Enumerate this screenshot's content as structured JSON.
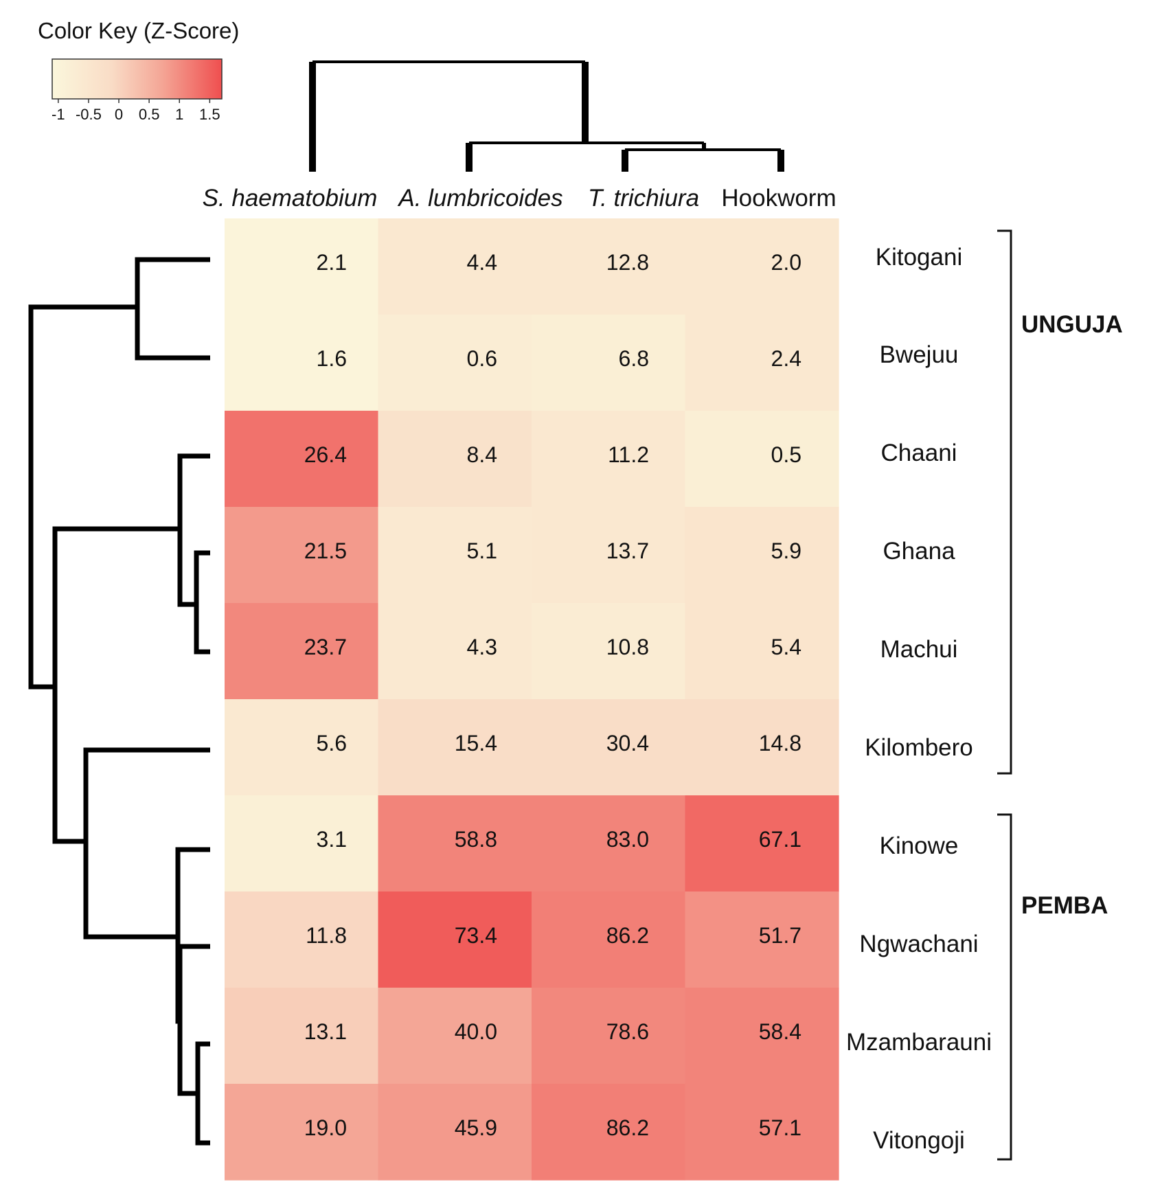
{
  "chart_data": {
    "type": "heatmap",
    "title": "",
    "columns": [
      "S. haematobium",
      "A. lumbricoides",
      "T. trichiura",
      "Hookworm"
    ],
    "columns_italic": [
      true,
      true,
      true,
      false
    ],
    "rows": [
      "Kitogani",
      "Bwejuu",
      "Chaani",
      "Ghana",
      "Machui",
      "Kilombero",
      "Kinowe",
      "Ngwachani",
      "Mzambarauni",
      "Vitongoji"
    ],
    "values": [
      [
        2.1,
        4.4,
        12.8,
        2.0
      ],
      [
        1.6,
        0.6,
        6.8,
        2.4
      ],
      [
        26.4,
        8.4,
        11.2,
        0.5
      ],
      [
        21.5,
        5.1,
        13.7,
        5.9
      ],
      [
        23.7,
        4.3,
        10.8,
        5.4
      ],
      [
        5.6,
        15.4,
        30.4,
        14.8
      ],
      [
        3.1,
        58.8,
        83.0,
        67.1
      ],
      [
        11.8,
        73.4,
        86.2,
        51.7
      ],
      [
        13.1,
        40.0,
        78.6,
        58.4
      ],
      [
        19.0,
        45.9,
        86.2,
        57.1
      ]
    ],
    "value_labels": [
      [
        "2.1",
        "4.4",
        "12.8",
        "2.0"
      ],
      [
        "1.6",
        "0.6",
        "6.8",
        "2.4"
      ],
      [
        "26.4",
        "8.4",
        "11.2",
        "0.5"
      ],
      [
        "21.5",
        "5.1",
        "13.7",
        "5.9"
      ],
      [
        "23.7",
        "4.3",
        "10.8",
        "5.4"
      ],
      [
        "5.6",
        "15.4",
        "30.4",
        "14.8"
      ],
      [
        "3.1",
        "58.8",
        "83.0",
        "67.1"
      ],
      [
        "11.8",
        "73.4",
        "86.2",
        "51.7"
      ],
      [
        "13.1",
        "40.0",
        "78.6",
        "58.4"
      ],
      [
        "19.0",
        "45.9",
        "86.2",
        "57.1"
      ]
    ],
    "z_scores": [
      [
        -1.0,
        -0.55,
        -0.55,
        -0.55
      ],
      [
        -1.0,
        -0.75,
        -0.8,
        -0.55
      ],
      [
        1.3,
        -0.35,
        -0.55,
        -0.8
      ],
      [
        0.85,
        -0.6,
        -0.55,
        -0.45
      ],
      [
        1.05,
        -0.6,
        -0.7,
        -0.45
      ],
      [
        -0.6,
        -0.15,
        -0.15,
        -0.15
      ],
      [
        -0.85,
        1.1,
        1.1,
        1.4
      ],
      [
        -0.05,
        1.55,
        1.15,
        0.95
      ],
      [
        0.1,
        0.7,
        1.05,
        1.1
      ],
      [
        0.7,
        0.85,
        1.15,
        1.1
      ]
    ],
    "groups": [
      {
        "label": "UNGUJA",
        "rows": [
          "Kitogani",
          "Bwejuu",
          "Chaani",
          "Ghana",
          "Machui",
          "Kilombero"
        ]
      },
      {
        "label": "PEMBA",
        "rows": [
          "Kinowe",
          "Ngwachani",
          "Mzambarauni",
          "Vitongoji"
        ]
      }
    ],
    "color_key": {
      "title": "Color Key (Z-Score)",
      "ticks": [
        "-1",
        "-0.5",
        "0",
        "0.5",
        "1",
        "1.5"
      ],
      "tick_values": [
        -1,
        -0.5,
        0,
        0.5,
        1,
        1.5
      ],
      "range": [
        -1.1,
        1.7
      ],
      "low_color": "#fbf7dc",
      "high_color": "#ef4f4f"
    },
    "row_dendrogram": true,
    "column_dendrogram": true
  }
}
